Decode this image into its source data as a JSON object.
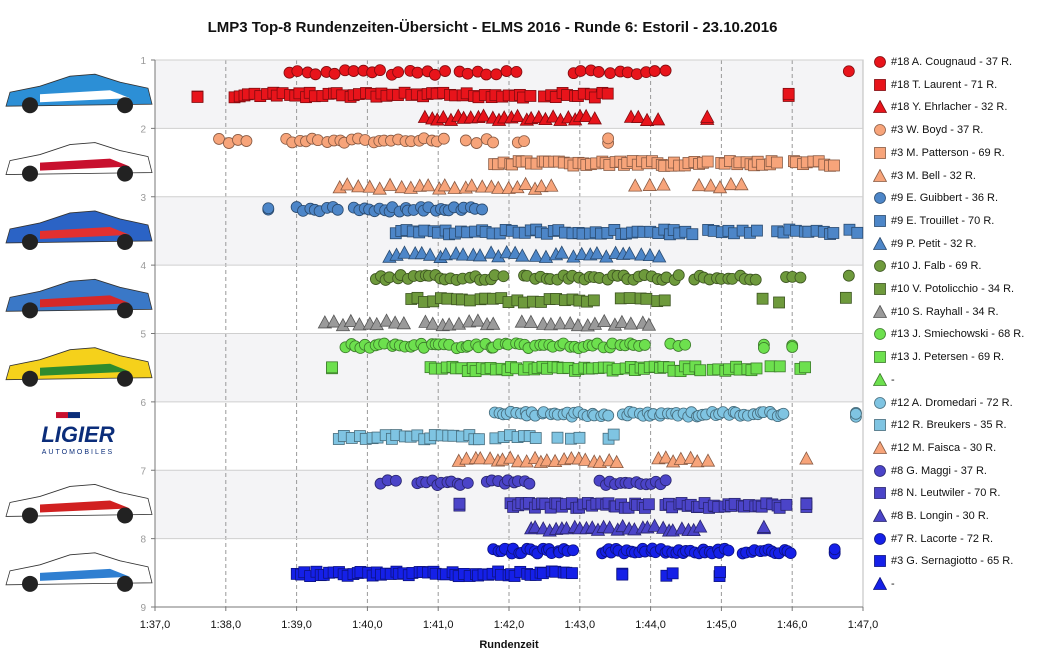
{
  "chart_data": {
    "type": "scatter",
    "title": "LMP3  Top-8  Rundenzeiten-Übersicht   - ELMS  2016   - Runde  6:  Estoril   - 23.10.2016",
    "xlabel": "Rundenzeit",
    "xlim": [
      97,
      107
    ],
    "x_ticks": [
      "1:37,0",
      "1:38,0",
      "1:39,0",
      "1:40,0",
      "1:41,0",
      "1:42,0",
      "1:43,0",
      "1:44,0",
      "1:45,0",
      "1:46,0",
      "1:47,0"
    ],
    "ylim": [
      1,
      9
    ],
    "y_ticks": [
      "1",
      "2",
      "3",
      "4",
      "5",
      "6",
      "7",
      "8",
      "9"
    ],
    "grid": "vertical dashed",
    "legend_position": "right",
    "series": [
      {
        "name": "#18 A. Cougnaud - 37 R.",
        "marker": "circle",
        "color": "#e8141b",
        "row": 0,
        "ranges": [
          [
            98.9,
            101.1
          ],
          [
            101.3,
            102.1
          ],
          [
            102.9,
            104.2
          ],
          [
            106.8,
            106.8
          ]
        ],
        "count": 37
      },
      {
        "name": "#18 T. Laurent - 71 R.",
        "marker": "square",
        "color": "#e8141b",
        "row": 1,
        "ranges": [
          [
            97.6,
            97.6
          ],
          [
            98.1,
            101.0
          ],
          [
            101.0,
            102.3
          ],
          [
            102.5,
            103.4
          ],
          [
            105.95,
            105.95
          ]
        ],
        "count": 71
      },
      {
        "name": "#18 Y. Ehrlacher - 32 R.",
        "marker": "triangle",
        "color": "#e8141b",
        "row": 2,
        "ranges": [
          [
            100.8,
            103.2
          ],
          [
            103.7,
            104.1
          ],
          [
            104.8,
            104.8
          ]
        ],
        "count": 32
      },
      {
        "name": "#3 W. Boyd - 37 R.",
        "marker": "circle",
        "color": "#f7a47a",
        "row": 0,
        "ranges": [
          [
            97.9,
            98.3
          ],
          [
            98.85,
            101.1
          ],
          [
            101.4,
            101.8
          ],
          [
            102.1,
            102.2
          ],
          [
            103.4,
            103.4
          ]
        ],
        "count": 37
      },
      {
        "name": "#3 M. Patterson - 69 R.",
        "marker": "square",
        "color": "#f7a47a",
        "row": 1,
        "ranges": [
          [
            101.8,
            104.8
          ],
          [
            105.0,
            105.8
          ],
          [
            106.0,
            106.6
          ]
        ],
        "count": 69
      },
      {
        "name": "#3 M. Bell - 32 R.",
        "marker": "triangle",
        "color": "#f7a47a",
        "row": 2,
        "ranges": [
          [
            99.6,
            100.3
          ],
          [
            100.5,
            102.6
          ],
          [
            103.8,
            104.2
          ],
          [
            104.7,
            105.3
          ]
        ],
        "count": 32
      },
      {
        "name": "#9 E. Guibbert - 36 R.",
        "marker": "circle",
        "color": "#4d86c8",
        "row": 0,
        "ranges": [
          [
            98.6,
            98.6
          ],
          [
            99.0,
            99.6
          ],
          [
            99.8,
            101.6
          ]
        ],
        "count": 36
      },
      {
        "name": "#9 E. Trouillet - 70 R.",
        "marker": "square",
        "color": "#4d86c8",
        "row": 1,
        "ranges": [
          [
            100.4,
            104.6
          ],
          [
            104.8,
            105.5
          ],
          [
            105.8,
            106.6
          ],
          [
            106.8,
            106.9
          ]
        ],
        "count": 70
      },
      {
        "name": "#9 P. Petit - 32 R.",
        "marker": "triangle",
        "color": "#4d86c8",
        "row": 2,
        "ranges": [
          [
            100.3,
            102.2
          ],
          [
            102.4,
            103.5
          ],
          [
            103.6,
            104.1
          ]
        ],
        "count": 32
      },
      {
        "name": "#10 J. Falb - 69 R.",
        "marker": "circle",
        "color": "#6e9a3c",
        "row": 0,
        "ranges": [
          [
            100.1,
            101.9
          ],
          [
            102.2,
            104.4
          ],
          [
            104.6,
            105.5
          ],
          [
            105.9,
            106.1
          ],
          [
            106.8,
            106.8
          ]
        ],
        "count": 69
      },
      {
        "name": "#10 V. Potolicchio - 34 R.",
        "marker": "square",
        "color": "#6e9a3c",
        "row": 1,
        "ranges": [
          [
            100.6,
            103.2
          ],
          [
            103.6,
            104.2
          ],
          [
            105.6,
            105.8
          ],
          [
            106.7,
            106.8
          ]
        ],
        "count": 34
      },
      {
        "name": "#10 S. Rayhall - 34 R.",
        "marker": "triangle",
        "color": "#9a9a9a",
        "row": 2,
        "ranges": [
          [
            99.4,
            100.5
          ],
          [
            100.8,
            101.8
          ],
          [
            102.2,
            104.0
          ]
        ],
        "count": 34
      },
      {
        "name": "#13 J. Smiechowski - 68 R.",
        "marker": "circle",
        "color": "#6de04e",
        "row": 0,
        "ranges": [
          [
            99.7,
            103.9
          ],
          [
            104.3,
            104.5
          ],
          [
            105.6,
            105.6
          ],
          [
            106.0,
            106.0
          ]
        ],
        "count": 68
      },
      {
        "name": "#13 J. Petersen - 69 R.",
        "marker": "square",
        "color": "#6de04e",
        "row": 1,
        "ranges": [
          [
            99.5,
            99.5
          ],
          [
            100.9,
            104.7
          ],
          [
            104.9,
            105.5
          ],
          [
            105.7,
            105.8
          ],
          [
            106.1,
            106.2
          ]
        ],
        "count": 69
      },
      {
        "name": "-",
        "marker": "triangle",
        "color": "#6de04e",
        "row": 2,
        "ranges": [],
        "count": 0
      },
      {
        "name": "#12 A. Dromedari - 72 R.",
        "marker": "circle",
        "color": "#7fc4e2",
        "row": 0,
        "ranges": [
          [
            101.8,
            103.4
          ],
          [
            103.6,
            105.9
          ],
          [
            106.9,
            106.9
          ]
        ],
        "count": 72
      },
      {
        "name": "#12 R. Breukers - 35 R.",
        "marker": "square",
        "color": "#7fc4e2",
        "row": 1,
        "ranges": [
          [
            99.6,
            101.6
          ],
          [
            101.8,
            102.4
          ],
          [
            102.7,
            103.0
          ],
          [
            103.4,
            103.5
          ]
        ],
        "count": 35
      },
      {
        "name": "#12 M. Faisca - 30 R.",
        "marker": "triangle",
        "color": "#f7a47a",
        "row": 2,
        "ranges": [
          [
            101.3,
            103.5
          ],
          [
            104.1,
            104.8
          ],
          [
            106.2,
            106.2
          ]
        ],
        "count": 30
      },
      {
        "name": "#8 G. Maggi - 37 R.",
        "marker": "circle",
        "color": "#4b44c8",
        "row": 0,
        "ranges": [
          [
            100.2,
            100.4
          ],
          [
            100.7,
            101.4
          ],
          [
            101.7,
            102.3
          ],
          [
            103.3,
            104.2
          ]
        ],
        "count": 37
      },
      {
        "name": "#8 N. Leutwiler - 70 R.",
        "marker": "square",
        "color": "#4b44c8",
        "row": 1,
        "ranges": [
          [
            101.3,
            101.3
          ],
          [
            102.0,
            104.0
          ],
          [
            104.2,
            104.9
          ],
          [
            104.9,
            105.9
          ],
          [
            106.2,
            106.2
          ]
        ],
        "count": 70
      },
      {
        "name": "#8 B. Longin - 30 R.",
        "marker": "triangle",
        "color": "#4b44c8",
        "row": 2,
        "ranges": [
          [
            102.3,
            103.6
          ],
          [
            103.7,
            104.7
          ],
          [
            105.6,
            105.6
          ]
        ],
        "count": 30
      },
      {
        "name": "#7 R. Lacorte - 72 R.",
        "marker": "circle",
        "color": "#1520e8",
        "row": 0,
        "ranges": [
          [
            101.8,
            102.9
          ],
          [
            103.3,
            105.1
          ],
          [
            105.3,
            106.0
          ],
          [
            106.6,
            106.6
          ]
        ],
        "count": 72
      },
      {
        "name": "#3 G. Sernagiotto - 65 R.",
        "marker": "square",
        "color": "#1520e8",
        "row": 1,
        "ranges": [
          [
            99.0,
            102.5
          ],
          [
            102.6,
            102.9
          ],
          [
            103.6,
            103.6
          ],
          [
            104.2,
            104.3
          ],
          [
            104.95,
            105.0
          ]
        ],
        "count": 65
      },
      {
        "name": "-",
        "marker": "triangle",
        "color": "#1520e8",
        "row": 2,
        "ranges": [],
        "count": 0
      }
    ]
  },
  "car_images": [
    "car-18-icon",
    "car-3-icon",
    "car-9-icon",
    "car-10-icon",
    "car-13-icon",
    "ligier-logo-icon",
    "car-8-icon",
    "car-7-icon"
  ],
  "ligier_logo": {
    "brand": "LIGIER",
    "sub": "AUTOMOBILES"
  }
}
